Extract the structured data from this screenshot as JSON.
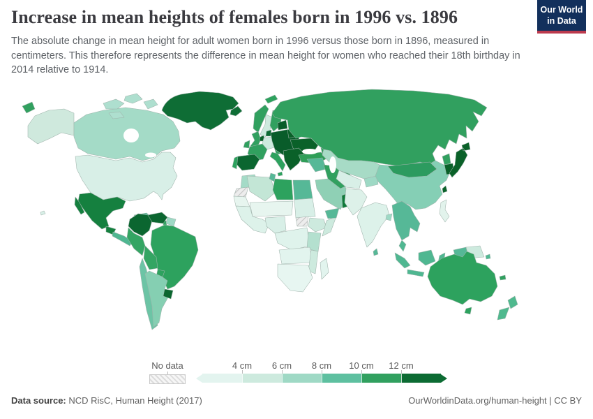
{
  "header": {
    "title": "Increase in mean heights of females born in 1996 vs. 1896",
    "subtitle": "The absolute change in mean height for adult women born in 1996 versus those born in 1896, measured in centimeters. This therefore represents the difference in mean height for women who reached their 18th birthday in 2014 relative to 1914.",
    "logo": {
      "line1": "Our World",
      "line2": "in Data",
      "bg": "#12305c",
      "accent": "#bc3a4e"
    }
  },
  "legend": {
    "no_data_label": "No data",
    "tick_labels": [
      "4 cm",
      "6 cm",
      "8 cm",
      "10 cm",
      "12 cm"
    ],
    "colors": [
      "#e3f4ef",
      "#cdeade",
      "#9fd9c5",
      "#5ec0a0",
      "#31a05f",
      "#0c6b33"
    ]
  },
  "footer": {
    "source_label": "Data source:",
    "source_value": " NCD RisC, Human Height (2017)",
    "link": "OurWorldinData.org/human-height | CC BY"
  },
  "chart_data": {
    "type": "heatmap",
    "subtype": "choropleth-world-map",
    "title": "Increase in mean heights of females born in 1996 vs. 1896",
    "unit": "cm",
    "legend_position": "bottom",
    "bins": [
      "<4 cm",
      "4–6 cm",
      "6–8 cm",
      "8–10 cm",
      "10–12 cm",
      ">12 cm"
    ],
    "bin_colors": [
      "#e3f4ef",
      "#cdeade",
      "#9fd9c5",
      "#5ec0a0",
      "#31a05f",
      "#0c6b33"
    ],
    "no_data_color": "hatched-gray",
    "regions": [
      {
        "name": "United States",
        "bin": "4–6 cm"
      },
      {
        "name": "Canada",
        "bin": "6–8 cm"
      },
      {
        "name": "Greenland",
        "bin": ">12 cm"
      },
      {
        "name": "Iceland",
        "bin": ">12 cm"
      },
      {
        "name": "Mexico",
        "bin": ">12 cm"
      },
      {
        "name": "Guatemala",
        "bin": ">12 cm"
      },
      {
        "name": "Honduras",
        "bin": "8–10 cm"
      },
      {
        "name": "Cuba",
        "bin": "8–10 cm"
      },
      {
        "name": "Dominican Republic",
        "bin": ">12 cm"
      },
      {
        "name": "Colombia",
        "bin": ">12 cm"
      },
      {
        "name": "Venezuela",
        "bin": ">12 cm"
      },
      {
        "name": "Brazil",
        "bin": "10–12 cm"
      },
      {
        "name": "Peru",
        "bin": "10–12 cm"
      },
      {
        "name": "Bolivia",
        "bin": "10–12 cm"
      },
      {
        "name": "Paraguay",
        "bin": "10–12 cm"
      },
      {
        "name": "Chile",
        "bin": "8–10 cm"
      },
      {
        "name": "Argentina",
        "bin": "6–8 cm"
      },
      {
        "name": "Uruguay",
        "bin": ">12 cm"
      },
      {
        "name": "Norway",
        "bin": "10–12 cm"
      },
      {
        "name": "Sweden",
        "bin": "4–6 cm"
      },
      {
        "name": "Finland",
        "bin": "10–12 cm"
      },
      {
        "name": "Denmark",
        "bin": ">12 cm"
      },
      {
        "name": "United Kingdom",
        "bin": "10–12 cm"
      },
      {
        "name": "Ireland",
        "bin": "10–12 cm"
      },
      {
        "name": "France",
        "bin": "10–12 cm"
      },
      {
        "name": "Germany",
        "bin": "4–6 cm"
      },
      {
        "name": "Spain",
        "bin": ">12 cm"
      },
      {
        "name": "Portugal",
        "bin": "10–12 cm"
      },
      {
        "name": "Italy",
        "bin": "10–12 cm"
      },
      {
        "name": "Poland",
        "bin": ">12 cm"
      },
      {
        "name": "Czechia",
        "bin": ">12 cm"
      },
      {
        "name": "Hungary",
        "bin": ">12 cm"
      },
      {
        "name": "Ukraine",
        "bin": ">12 cm"
      },
      {
        "name": "Belarus",
        "bin": ">12 cm"
      },
      {
        "name": "Baltic states",
        "bin": ">12 cm"
      },
      {
        "name": "Romania",
        "bin": ">12 cm"
      },
      {
        "name": "Bulgaria",
        "bin": ">12 cm"
      },
      {
        "name": "Serbia",
        "bin": ">12 cm"
      },
      {
        "name": "Greece",
        "bin": ">12 cm"
      },
      {
        "name": "Turkey",
        "bin": "10–12 cm"
      },
      {
        "name": "Russia",
        "bin": "10–12 cm"
      },
      {
        "name": "Kazakhstan",
        "bin": "6–8 cm"
      },
      {
        "name": "Uzbekistan",
        "bin": "4–6 cm"
      },
      {
        "name": "Iran",
        "bin": "10–12 cm"
      },
      {
        "name": "Iraq",
        "bin": "8–10 cm"
      },
      {
        "name": "Saudi Arabia",
        "bin": "6–8 cm"
      },
      {
        "name": "Yemen",
        "bin": "8–10 cm"
      },
      {
        "name": "Oman",
        "bin": ">12 cm"
      },
      {
        "name": "Morocco",
        "bin": "6–8 cm"
      },
      {
        "name": "Algeria",
        "bin": "4–6 cm"
      },
      {
        "name": "Tunisia",
        "bin": "8–10 cm"
      },
      {
        "name": "Libya",
        "bin": "10–12 cm"
      },
      {
        "name": "Egypt",
        "bin": "8–10 cm"
      },
      {
        "name": "Western Sahara",
        "bin": "No data"
      },
      {
        "name": "Mauritania",
        "bin": "<4 cm"
      },
      {
        "name": "Mali",
        "bin": "<4 cm"
      },
      {
        "name": "Niger",
        "bin": "<4 cm"
      },
      {
        "name": "Nigeria",
        "bin": "<4 cm"
      },
      {
        "name": "Sudan",
        "bin": "4–6 cm"
      },
      {
        "name": "South Sudan",
        "bin": "No data"
      },
      {
        "name": "Ethiopia",
        "bin": "4–6 cm"
      },
      {
        "name": "Somalia",
        "bin": "4–6 cm"
      },
      {
        "name": "Kenya",
        "bin": "6–8 cm"
      },
      {
        "name": "Tanzania",
        "bin": "6–8 cm"
      },
      {
        "name": "DR Congo",
        "bin": "<4 cm"
      },
      {
        "name": "Angola",
        "bin": "<4 cm"
      },
      {
        "name": "Zambia",
        "bin": "<4 cm"
      },
      {
        "name": "Mozambique",
        "bin": "4–6 cm"
      },
      {
        "name": "South Africa",
        "bin": "<4 cm"
      },
      {
        "name": "Madagascar",
        "bin": "<4 cm"
      },
      {
        "name": "Afghanistan",
        "bin": "<4 cm"
      },
      {
        "name": "Pakistan",
        "bin": "<4 cm"
      },
      {
        "name": "India",
        "bin": "<4 cm"
      },
      {
        "name": "Bangladesh",
        "bin": "6–8 cm"
      },
      {
        "name": "Sri Lanka",
        "bin": "8–10 cm"
      },
      {
        "name": "China",
        "bin": "6–8 cm"
      },
      {
        "name": "Mongolia",
        "bin": "10–12 cm"
      },
      {
        "name": "Myanmar",
        "bin": "8–10 cm"
      },
      {
        "name": "Thailand",
        "bin": "8–10 cm"
      },
      {
        "name": "Vietnam",
        "bin": "8–10 cm"
      },
      {
        "name": "Malaysia",
        "bin": "8–10 cm"
      },
      {
        "name": "Indonesia",
        "bin": "8–10 cm"
      },
      {
        "name": "Philippines",
        "bin": "<4 cm"
      },
      {
        "name": "North Korea",
        "bin": "10–12 cm"
      },
      {
        "name": "South Korea",
        "bin": ">12 cm"
      },
      {
        "name": "Japan",
        "bin": ">12 cm"
      },
      {
        "name": "Taiwan",
        "bin": ">12 cm"
      },
      {
        "name": "Papua New Guinea",
        "bin": "4–6 cm"
      },
      {
        "name": "Australia",
        "bin": "10–12 cm"
      },
      {
        "name": "New Zealand",
        "bin": "8–10 cm"
      }
    ]
  },
  "map_colors": {
    "alaska": "#cfe9dd",
    "hawaii": "#d8efe7",
    "canada": "#a4dbc7",
    "arctic_islands": "#aedfcf",
    "greenland": "#0e6d35",
    "iceland": "#0e6d35",
    "svalbard": "#2da25e",
    "usa": "#d8efe7",
    "mexico": "#15803f",
    "baja": "#15803f",
    "guatemala": "#15803f",
    "central_america": "#4fb791",
    "cuba": "#56b897",
    "hispaniola": "#0e6d35",
    "caribbean": "#2da25e",
    "colombia": "#0b6630",
    "venezuela": "#0b6630",
    "guyanas": "#9ed9c5",
    "brazil": "#2da25e",
    "peru": "#34a563",
    "bolivia": "#34a563",
    "paraguay": "#2da25e",
    "chile": "#6cc4a5",
    "argentina": "#85cfb2",
    "uruguay": "#0b6630",
    "norway": "#31a05f",
    "sweden": "#cdeade",
    "finland": "#31a05f",
    "denmark": "#0c6b33",
    "uk": "#31a05f",
    "ireland": "#31a05f",
    "benelux": "#0a6129",
    "germany": "#cdeade",
    "france": "#31a05f",
    "spain": "#0b6630",
    "portugal": "#2da25e",
    "alpine": "#31a05f",
    "italy": "#2da25e",
    "east_europe": "#095c2a",
    "baltics": "#095c2a",
    "belarus": "#0a6129",
    "ukraine": "#0a6129",
    "balkans": "#0a6129",
    "turkey": "#2f9e58",
    "caucasus": "#31a05f",
    "morocco": "#a4dbc7",
    "w_sahara": "hatch",
    "mauritania": "#e7f5ef",
    "algeria": "#c3e6d6",
    "tunisia": "#56b897",
    "libya": "#2da25e",
    "egypt": "#56b897",
    "sahel": "#e7f5ef",
    "sudan": "#d8efe7",
    "s_sudan": "hatch",
    "west_africa": "#ddf2ea",
    "nigeria": "#d8efe7",
    "ethiopia": "#cdeade",
    "somalia": "#cdeade",
    "central_africa": "#dff3ec",
    "east_africa": "#b4e0cf",
    "angola_zambia": "#e2f4ee",
    "mozambique": "#cdeade",
    "southern_africa": "#e7f6f1",
    "madagascar": "#e2f4ee",
    "syria_iraq": "#56b897",
    "saudi": "#8fd0b5",
    "yemen": "#56b897",
    "oman": "#0f7a3a",
    "iran": "#31a05f",
    "russia": "#31a05f",
    "russia_west_sliver": "#31a05f",
    "kazakhstan": "#a7dbc6",
    "central_asia": "#d8efe7",
    "kyrgyz": "#9ed9c5",
    "china": "#85cfb5",
    "mongolia": "#2c9b5f",
    "afghan_pak": "#ddf1e9",
    "india": "#ddf2ea",
    "bangladesh": "#9ed9c5",
    "sri_lanka": "#56b897",
    "sea_mainland": "#56b897",
    "malay": "#4fb791",
    "sumatra": "#4fb791",
    "java": "#4fb791",
    "borneo": "#4fb791",
    "sulawesi": "#4fb791",
    "west_papua": "#56b897",
    "png": "#cdeade",
    "philippines": "#e2f3ec",
    "taiwan": "#0a6129",
    "nk": "#31a05f",
    "sk": "#0a6129",
    "japan": "#0a6129",
    "australia": "#2da25e",
    "tasmania": "#2da25e",
    "nz": "#4fb98e",
    "newcaledonia": "#31a05f",
    "solomon": "#4fb791"
  }
}
